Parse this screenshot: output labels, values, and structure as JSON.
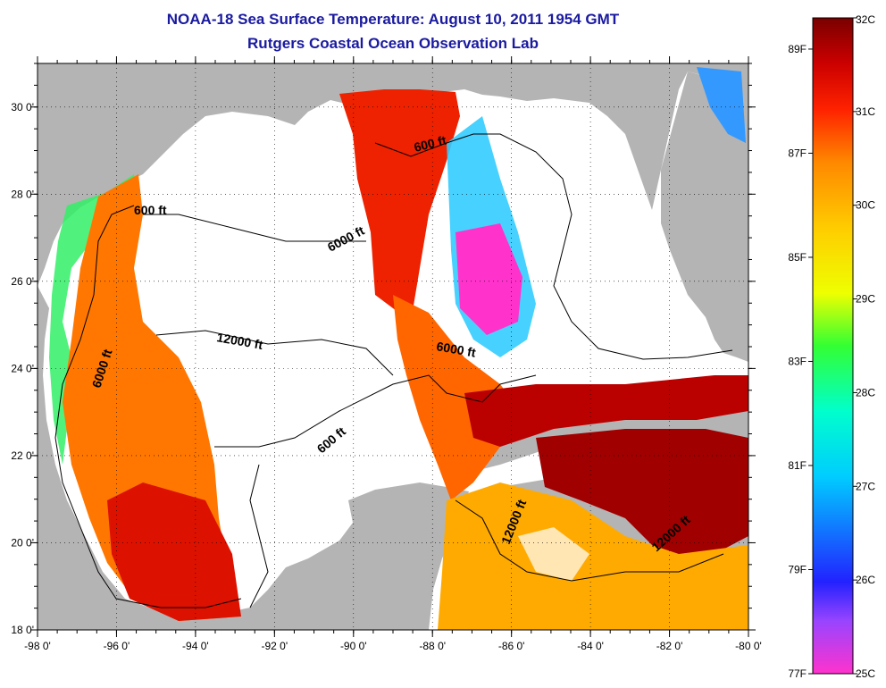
{
  "title": {
    "line1": "NOAA-18 Sea Surface Temperature:  August 10, 2011 1954 GMT",
    "line2": "Rutgers Coastal Ocean Observation Lab"
  },
  "map": {
    "lon_range": [
      -98,
      -80
    ],
    "lat_range": [
      18,
      31
    ],
    "lon_ticks": [
      "-98 0'",
      "-96 0'",
      "-94 0'",
      "-92 0'",
      "-90 0'",
      "-88 0'",
      "-86 0'",
      "-84 0'",
      "-82 0'",
      "-80 0'"
    ],
    "lat_ticks": [
      "30 0'",
      "28 0'",
      "26 0'",
      "24 0'",
      "22 0'",
      "20 0'",
      "18 0'"
    ],
    "land_color": "#b4b4b4",
    "cloud_color": "#ffffff",
    "contour_labels": [
      {
        "text": "600 ft"
      },
      {
        "text": "6000 ft"
      },
      {
        "text": "12000 ft"
      },
      {
        "text": "6000 ft"
      },
      {
        "text": "600 ft"
      },
      {
        "text": "600 ft"
      },
      {
        "text": "6000 ft"
      },
      {
        "text": "12000 ft"
      },
      {
        "text": "12000 ft"
      }
    ]
  },
  "colorbar": {
    "celsius_labels": [
      "32C",
      "31C",
      "30C",
      "29C",
      "28C",
      "27C",
      "26C",
      "25C"
    ],
    "fahrenheit_labels": [
      "89F",
      "87F",
      "85F",
      "83F",
      "81F",
      "79F",
      "77F"
    ],
    "stops": [
      "#ff33cc",
      "#9944ff",
      "#2222ff",
      "#00ccff",
      "#00ffcc",
      "#33ff33",
      "#eeff00",
      "#ffcc00",
      "#ff8800",
      "#ff2200",
      "#cc0000",
      "#7a0000"
    ]
  }
}
